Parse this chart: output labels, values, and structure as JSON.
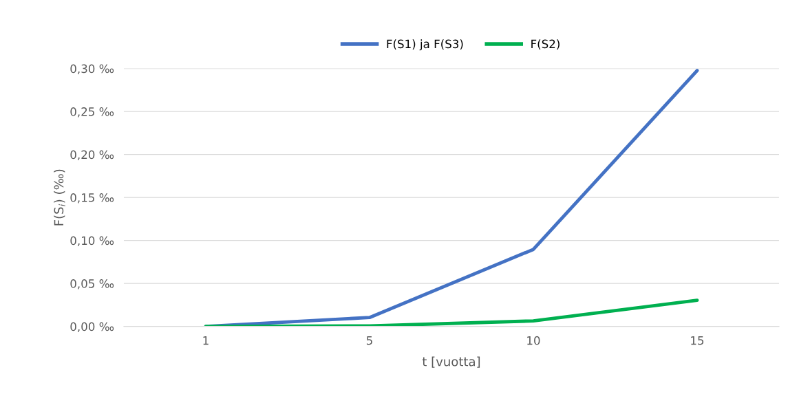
{
  "chart_data": {
    "type": "line",
    "xlabel": "t [vuotta]",
    "ylabel": "F(S$_{i}$) (‰)",
    "categories": [
      "1",
      "5",
      "10",
      "15"
    ],
    "series": [
      {
        "name": "F(S1) ja F(S3)",
        "color": "#4472c4",
        "values": [
          0,
          0.0104,
          0.0896,
          0.2976
        ]
      },
      {
        "name": "F(S2)",
        "color": "#00b050",
        "values": [
          0,
          0.0006,
          0.0064,
          0.0304
        ]
      }
    ],
    "ylim": [
      0,
      0.3
    ],
    "yticks": [
      {
        "value": 0,
        "label": "0,00 ‰"
      },
      {
        "value": 0.05,
        "label": "0,05 ‰"
      },
      {
        "value": 0.1,
        "label": "0,10 ‰"
      },
      {
        "value": 0.15,
        "label": "0,15 ‰"
      },
      {
        "value": 0.2,
        "label": "0,20 ‰"
      },
      {
        "value": 0.25,
        "label": "0,25 ‰"
      },
      {
        "value": 0.3,
        "label": "0,30 ‰"
      }
    ],
    "grid": "y",
    "legend": "top",
    "marker": "none",
    "line_style": "solid"
  }
}
